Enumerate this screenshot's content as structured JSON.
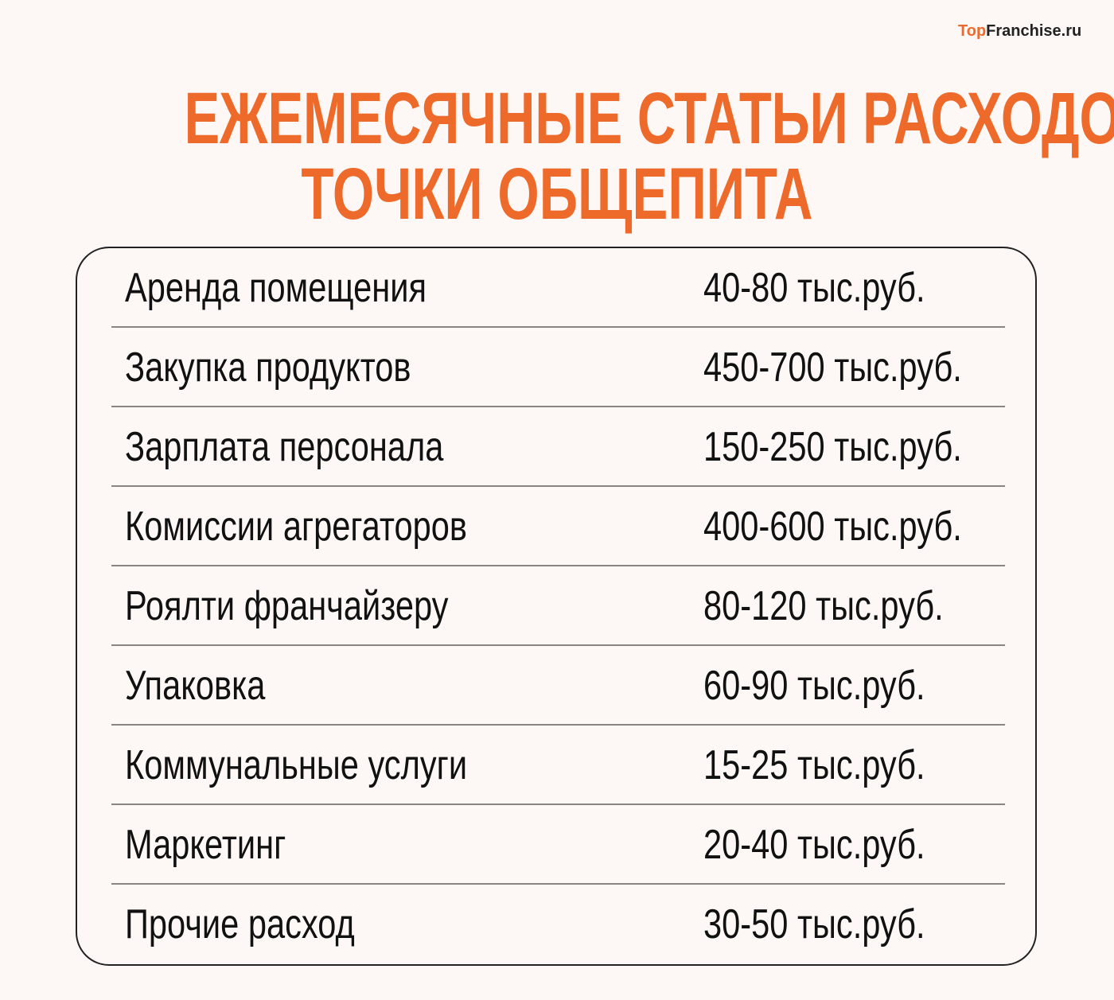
{
  "logo": {
    "part1": "Top",
    "part2": "Franchise.ru"
  },
  "title": {
    "line1": "ЕЖЕМЕСЯЧНЫЕ СТАТЬИ РАСХОДОВ",
    "line2": "ТОЧКИ ОБЩЕПИТА"
  },
  "colors": {
    "accent": "#ee6a2a",
    "background": "#fdf8f5",
    "text": "#111111"
  },
  "rows": [
    {
      "name": "Аренда помещения",
      "value": "40-80 тыс.руб."
    },
    {
      "name": "Закупка продуктов",
      "value": "450-700 тыс.руб."
    },
    {
      "name": "Зарплата персонала",
      "value": "150-250 тыс.руб."
    },
    {
      "name": "Комиссии агрегаторов",
      "value": "400-600 тыс.руб."
    },
    {
      "name": "Роялти франчайзеру",
      "value": "80-120 тыс.руб."
    },
    {
      "name": "Упаковка",
      "value": "60-90 тыс.руб."
    },
    {
      "name": "Коммунальные услуги",
      "value": "15-25 тыс.руб."
    },
    {
      "name": "Маркетинг",
      "value": "20-40 тыс.руб."
    },
    {
      "name": "Прочие расход",
      "value": "30-50 тыс.руб."
    }
  ]
}
